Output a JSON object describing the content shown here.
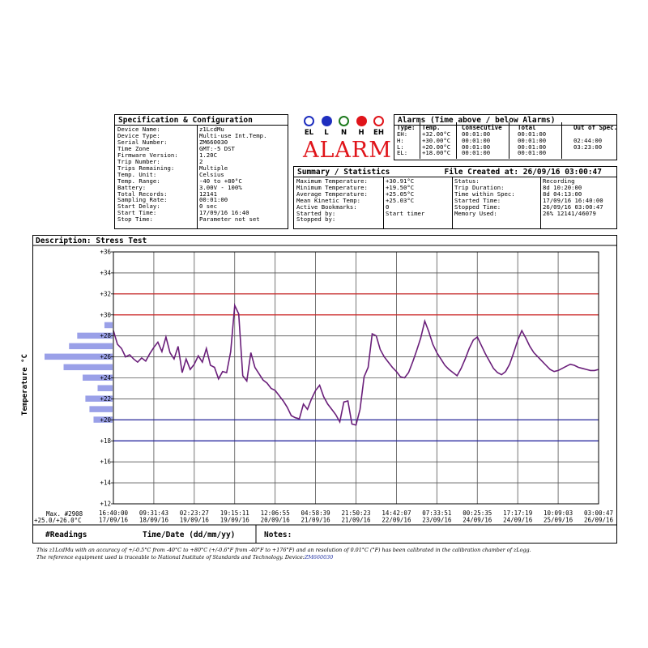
{
  "spec": {
    "title": "Specification & Configuration",
    "rows": [
      {
        "k": "Device Name:",
        "v": "z1LcdMu"
      },
      {
        "k": "Device Type:",
        "v": "Multi-use Int.Temp."
      },
      {
        "k": "Serial Number:",
        "v": "ZM660030"
      },
      {
        "k": "Time Zone",
        "v": "GMT:-5 DST"
      },
      {
        "k": "Firmware Version:",
        "v": "1.20C"
      },
      {
        "k": "Trip Number:",
        "v": "2"
      },
      {
        "k": "Trips Remaining:",
        "v": "Multiple"
      },
      {
        "k": "Temp. Unit:",
        "v": "Celsius"
      },
      {
        "k": "Temp. Range:",
        "v": "-40 to +80°C"
      },
      {
        "k": "Battery:",
        "v": "3.00V - 100%"
      },
      {
        "k": "Total Records:",
        "v": "12141"
      },
      {
        "k": "Sampling Rate:",
        "v": "00:01:00"
      },
      {
        "k": "Start Delay:",
        "v": "0 sec"
      },
      {
        "k": "Start Time:",
        "v": "17/09/16 16:40"
      },
      {
        "k": "Stop Time:",
        "v": "Parameter not set"
      }
    ]
  },
  "leds": {
    "labels": [
      "EL",
      "L",
      "N",
      "H",
      "EH"
    ],
    "colors": [
      "#1f2fbf",
      "#1f2fbf",
      "#1e7a1e",
      "#e0141a",
      "#e0141a"
    ],
    "filled": [
      false,
      true,
      false,
      true,
      false
    ]
  },
  "alarm_word": "ALARM",
  "alarms": {
    "title": "Alarms (Time above / below Alarms)",
    "headers": [
      "Type:",
      "Temp.",
      "Consecutive",
      "Total",
      "Out of Spec."
    ],
    "rows": [
      [
        "EH:",
        "+32.00°C",
        "00:01:00",
        "00:01:00",
        ""
      ],
      [
        "H:",
        "+30.00°C",
        "00:01:00",
        "00:01:00",
        "02:44:00"
      ],
      [
        "L:",
        "+20.00°C",
        "00:01:00",
        "00:01:00",
        "03:23:00"
      ],
      [
        "EL:",
        "+18.00°C",
        "00:01:00",
        "00:01:00",
        ""
      ]
    ]
  },
  "summary": {
    "title": "Summary / Statistics",
    "file_created": "File Created at: 26/09/16 03:00:47",
    "left": [
      {
        "k": "Maximum Temperature:",
        "v": "+30.91°C"
      },
      {
        "k": "Minimum Temperature:",
        "v": "+19.50°C"
      },
      {
        "k": "Average Temperature:",
        "v": "+25.05°C"
      },
      {
        "k": "Mean Kinetic Temp:",
        "v": "+25.03°C"
      },
      {
        "k": "Active Bookmarks:",
        "v": "0"
      },
      {
        "k": "Started by:",
        "v": "Start timer"
      },
      {
        "k": "Stopped by:",
        "v": ""
      }
    ],
    "right": [
      {
        "k": "Status:",
        "v": "Recording"
      },
      {
        "k": "Trip Duration:",
        "v": "8d 10:20:00"
      },
      {
        "k": "Time within Spec:",
        "v": "8d 04:13:00"
      },
      {
        "k": "Started Time:",
        "v": "17/09/16 16:40:00"
      },
      {
        "k": "Stopped Time:",
        "v": "26/09/16 03:00:47"
      },
      {
        "k": "Memory Used:",
        "v": "26% 12141/46079"
      }
    ]
  },
  "chart_data": {
    "type": "line",
    "title": "Description: Stress Test",
    "ylabel": "Temperature °C",
    "xlabel": "Time/Date (dd/mm/yy)",
    "ylim": [
      12,
      36
    ],
    "yticks": [
      "+12",
      "+14",
      "+16",
      "+18",
      "+20",
      "+22",
      "+24",
      "+26",
      "+28",
      "+30",
      "+32",
      "+34",
      "+36"
    ],
    "thresholds": [
      {
        "value": 32,
        "color": "#d02020"
      },
      {
        "value": 30,
        "color": "#d02020"
      },
      {
        "value": 20,
        "color": "#2020a0"
      },
      {
        "value": 18,
        "color": "#2020a0"
      }
    ],
    "xticks": [
      {
        "time": "16:40:00",
        "date": "17/09/16"
      },
      {
        "time": "09:31:43",
        "date": "18/09/16"
      },
      {
        "time": "02:23:27",
        "date": "19/09/16"
      },
      {
        "time": "19:15:11",
        "date": "19/09/16"
      },
      {
        "time": "12:06:55",
        "date": "20/09/16"
      },
      {
        "time": "04:58:39",
        "date": "21/09/16"
      },
      {
        "time": "21:50:23",
        "date": "21/09/16"
      },
      {
        "time": "14:42:07",
        "date": "22/09/16"
      },
      {
        "time": "07:33:51",
        "date": "23/09/16"
      },
      {
        "time": "00:25:35",
        "date": "24/09/16"
      },
      {
        "time": "17:17:19",
        "date": "24/09/16"
      },
      {
        "time": "10:09:03",
        "date": "25/09/16"
      },
      {
        "time": "03:00:47",
        "date": "26/09/16"
      }
    ],
    "line_color": "#6a1f7a",
    "series": [
      {
        "x": [
          0,
          0.1,
          0.2,
          0.3,
          0.4,
          0.5,
          0.6,
          0.7,
          0.8,
          0.9,
          1.0,
          1.1,
          1.2,
          1.3,
          1.4,
          1.5,
          1.6,
          1.7,
          1.8,
          1.9,
          2.0,
          2.1,
          2.2,
          2.3,
          2.4,
          2.5,
          2.6,
          2.7,
          2.8,
          2.9,
          3.0,
          3.1,
          3.2,
          3.3,
          3.4,
          3.5,
          3.6,
          3.7,
          3.8,
          3.9,
          4.0,
          4.1,
          4.2,
          4.3,
          4.4,
          4.5,
          4.6,
          4.7,
          4.8,
          4.9,
          5.0,
          5.1,
          5.2,
          5.3,
          5.4,
          5.5,
          5.6,
          5.7,
          5.8,
          5.9,
          6.0,
          6.1,
          6.2,
          6.3,
          6.4,
          6.5,
          6.6,
          6.7,
          6.8,
          6.9,
          7.0,
          7.1,
          7.2,
          7.3,
          7.4,
          7.5,
          7.6,
          7.7,
          7.8,
          7.9,
          8.0,
          8.1,
          8.2,
          8.3,
          8.4,
          8.5,
          8.6,
          8.7,
          8.8,
          8.9,
          9.0,
          9.1,
          9.2,
          9.3,
          9.4,
          9.5,
          9.6,
          9.7,
          9.8,
          9.9,
          10.0,
          10.1,
          10.2,
          10.3,
          10.4,
          10.5,
          10.6,
          10.7,
          10.8,
          10.9,
          11.0,
          11.1,
          11.2,
          11.3,
          11.4,
          11.5,
          11.6,
          11.7,
          11.8,
          11.9,
          12.0
        ],
        "y": [
          28.5,
          27.2,
          26.8,
          26.0,
          26.2,
          25.8,
          25.5,
          25.9,
          25.6,
          26.3,
          26.9,
          27.4,
          26.5,
          27.9,
          26.4,
          25.8,
          27.0,
          24.5,
          25.8,
          24.8,
          25.3,
          26.1,
          25.5,
          26.8,
          25.2,
          25.0,
          23.9,
          24.6,
          24.5,
          26.5,
          30.9,
          30.1,
          24.2,
          23.7,
          26.4,
          25.0,
          24.4,
          23.8,
          23.5,
          23.0,
          22.8,
          22.3,
          21.8,
          21.2,
          20.4,
          20.2,
          20.1,
          21.5,
          21.0,
          22.0,
          22.8,
          23.3,
          22.2,
          21.5,
          21.0,
          20.5,
          19.8,
          21.7,
          21.8,
          19.6,
          19.5,
          21.0,
          24.1,
          25.0,
          28.2,
          28.0,
          26.7,
          26.0,
          25.5,
          25.0,
          24.6,
          24.1,
          24.0,
          24.5,
          25.5,
          26.6,
          27.8,
          29.4,
          28.4,
          27.2,
          26.4,
          25.8,
          25.2,
          24.8,
          24.5,
          24.2,
          24.9,
          25.8,
          26.8,
          27.6,
          27.9,
          27.1,
          26.3,
          25.6,
          24.9,
          24.5,
          24.3,
          24.6,
          25.3,
          26.4,
          27.6,
          28.5,
          27.8,
          27.0,
          26.4,
          26.0,
          25.6,
          25.2,
          24.8,
          24.6,
          24.7,
          24.9,
          25.1,
          25.3,
          25.2,
          25.0,
          24.9,
          24.8,
          24.7,
          24.7,
          24.8
        ]
      }
    ],
    "histogram": {
      "bins": [
        29,
        28,
        27,
        26,
        25,
        24,
        23,
        22,
        21,
        20
      ],
      "values": [
        0.12,
        0.52,
        0.64,
        1.0,
        0.72,
        0.44,
        0.22,
        0.4,
        0.34,
        0.28
      ]
    }
  },
  "bottom": {
    "max_label": "Max. #2908",
    "max_value": "+25.0/+26.0°C",
    "readings": "#Readings",
    "timedate": "Time/Date (dd/mm/yy)",
    "notes": "Notes:"
  },
  "footer": {
    "line1": "This z1LcdMu with an accuracy of +/-0.5°C from -40°C to +80°C (+/-0.6°F from -40°F to +176°F) and an resolution of 0.01°C (°F) has been calibrated in the calibration chamber of zLogg.",
    "line2_prefix": "The reference equipment used is traceable to National Institute of Standards and Technology. Device:",
    "line2_link": "ZM660030"
  }
}
